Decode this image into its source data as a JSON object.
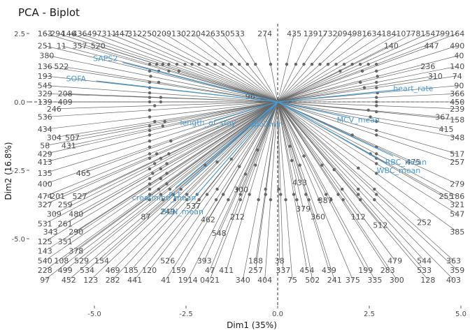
{
  "chart_data": {
    "type": "scatter",
    "title": "PCA - Biplot",
    "xlabel": "Dim1 (35%)",
    "ylabel": "Dim2 (16.8%)",
    "xlim": [
      -6.5,
      5.0
    ],
    "ylim": [
      -7.2,
      3.0
    ],
    "x_ticks": [
      -5.0,
      -2.5,
      0.0,
      2.5,
      5.0
    ],
    "x_tick_labels": [
      "-5.0",
      "-2.5",
      "0.0",
      "2.5",
      "5.0"
    ],
    "y_ticks": [
      2.5,
      0.0,
      -2.5,
      -5.0
    ],
    "y_tick_labels": [
      "2.5",
      "0.0",
      "-2.5",
      "-5.0"
    ],
    "grid": false,
    "reference_lines": {
      "x": 0,
      "y": 0,
      "style": "dashed"
    },
    "colors": {
      "observations": "#666666",
      "variables": "#4a9bd0"
    },
    "observations": [
      {
        "label": "163",
        "x": -6.35,
        "y": 2.5
      },
      {
        "label": "294",
        "x": -6.0,
        "y": 2.5
      },
      {
        "label": "146",
        "x": -5.7,
        "y": 2.5
      },
      {
        "label": "436",
        "x": -5.4,
        "y": 2.5
      },
      {
        "label": "497",
        "x": -5.0,
        "y": 2.5
      },
      {
        "label": "311",
        "x": -4.6,
        "y": 2.5
      },
      {
        "label": "447",
        "x": -4.25,
        "y": 2.5
      },
      {
        "label": "312",
        "x": -3.9,
        "y": 2.5
      },
      {
        "label": "250",
        "x": -3.5,
        "y": 2.5
      },
      {
        "label": "209",
        "x": -3.1,
        "y": 2.5
      },
      {
        "label": "130",
        "x": -2.7,
        "y": 2.5
      },
      {
        "label": "220",
        "x": -2.3,
        "y": 2.5
      },
      {
        "label": "426",
        "x": -1.9,
        "y": 2.5
      },
      {
        "label": "350",
        "x": -1.5,
        "y": 2.5
      },
      {
        "label": "533",
        "x": -1.1,
        "y": 2.5
      },
      {
        "label": "274",
        "x": -0.35,
        "y": 2.5
      },
      {
        "label": "435",
        "x": 0.45,
        "y": 2.5
      },
      {
        "label": "139",
        "x": 0.9,
        "y": 2.5
      },
      {
        "label": "173",
        "x": 1.3,
        "y": 2.5
      },
      {
        "label": "209",
        "x": 1.7,
        "y": 2.5
      },
      {
        "label": "498",
        "x": 2.1,
        "y": 2.5
      },
      {
        "label": "163",
        "x": 2.5,
        "y": 2.5
      },
      {
        "label": "418",
        "x": 2.9,
        "y": 2.5
      },
      {
        "label": "410",
        "x": 3.3,
        "y": 2.5
      },
      {
        "label": "778",
        "x": 3.7,
        "y": 2.5
      },
      {
        "label": "154",
        "x": 4.1,
        "y": 2.5
      },
      {
        "label": "799",
        "x": 4.5,
        "y": 2.5
      },
      {
        "label": "164",
        "x": 4.9,
        "y": 2.5
      },
      {
        "label": "251",
        "x": -6.35,
        "y": 2.05
      },
      {
        "label": "11",
        "x": -5.9,
        "y": 2.05
      },
      {
        "label": "357",
        "x": -5.4,
        "y": 2.05
      },
      {
        "label": "520",
        "x": -4.9,
        "y": 2.05
      },
      {
        "label": "140",
        "x": 3.1,
        "y": 2.05
      },
      {
        "label": "447",
        "x": 4.2,
        "y": 2.05
      },
      {
        "label": "490",
        "x": 4.9,
        "y": 2.05
      },
      {
        "label": "380",
        "x": -6.3,
        "y": 1.7
      },
      {
        "label": "40",
        "x": 4.95,
        "y": 1.7
      },
      {
        "label": "136",
        "x": -6.35,
        "y": 1.3
      },
      {
        "label": "522",
        "x": -5.9,
        "y": 1.3
      },
      {
        "label": "236",
        "x": 4.1,
        "y": 1.3
      },
      {
        "label": "140",
        "x": 4.9,
        "y": 1.3
      },
      {
        "label": "193",
        "x": -6.35,
        "y": 0.95
      },
      {
        "label": "310",
        "x": 4.3,
        "y": 0.95
      },
      {
        "label": "74",
        "x": 4.9,
        "y": 0.95
      },
      {
        "label": "545",
        "x": -6.35,
        "y": 0.6
      },
      {
        "label": "90",
        "x": 4.95,
        "y": 0.6
      },
      {
        "label": "329",
        "x": -6.35,
        "y": 0.3
      },
      {
        "label": "208",
        "x": -5.8,
        "y": 0.3
      },
      {
        "label": "366",
        "x": 4.9,
        "y": 0.3
      },
      {
        "label": "139",
        "x": -6.35,
        "y": 0.0
      },
      {
        "label": "409",
        "x": -5.8,
        "y": 0.0
      },
      {
        "label": "450",
        "x": 4.9,
        "y": 0.0
      },
      {
        "label": "246",
        "x": -6.1,
        "y": -0.25
      },
      {
        "label": "239",
        "x": 4.9,
        "y": -0.25
      },
      {
        "label": "536",
        "x": -6.35,
        "y": -0.55
      },
      {
        "label": "367",
        "x": 4.5,
        "y": -0.55
      },
      {
        "label": "158",
        "x": 4.9,
        "y": -0.65
      },
      {
        "label": "434",
        "x": -6.35,
        "y": -1.0
      },
      {
        "label": "415",
        "x": 4.6,
        "y": -1.0
      },
      {
        "label": "304",
        "x": -6.1,
        "y": -1.3
      },
      {
        "label": "507",
        "x": -5.6,
        "y": -1.3
      },
      {
        "label": "348",
        "x": 4.9,
        "y": -1.3
      },
      {
        "label": "58",
        "x": -6.35,
        "y": -1.6
      },
      {
        "label": "431",
        "x": -5.7,
        "y": -1.6
      },
      {
        "label": "429",
        "x": -6.35,
        "y": -1.9
      },
      {
        "label": "517",
        "x": 4.9,
        "y": -1.9
      },
      {
        "label": "413",
        "x": -6.35,
        "y": -2.2
      },
      {
        "label": "475",
        "x": 3.7,
        "y": -2.2
      },
      {
        "label": "257",
        "x": 4.9,
        "y": -2.2
      },
      {
        "label": "135",
        "x": -6.35,
        "y": -2.6
      },
      {
        "label": "465",
        "x": -5.3,
        "y": -2.6
      },
      {
        "label": "400",
        "x": -6.35,
        "y": -3.0
      },
      {
        "label": "279",
        "x": 4.9,
        "y": -3.0
      },
      {
        "label": "474",
        "x": -6.35,
        "y": -3.45
      },
      {
        "label": "201",
        "x": -6.0,
        "y": -3.45
      },
      {
        "label": "527",
        "x": -5.4,
        "y": -3.45
      },
      {
        "label": "255",
        "x": 4.6,
        "y": -3.45
      },
      {
        "label": "186",
        "x": 4.9,
        "y": -3.45
      },
      {
        "label": "327",
        "x": -6.35,
        "y": -3.75
      },
      {
        "label": "259",
        "x": -5.8,
        "y": -3.75
      },
      {
        "label": "321",
        "x": 4.9,
        "y": -3.75
      },
      {
        "label": "309",
        "x": -6.1,
        "y": -4.1
      },
      {
        "label": "480",
        "x": -5.5,
        "y": -4.1
      },
      {
        "label": "547",
        "x": 4.9,
        "y": -4.1
      },
      {
        "label": "531",
        "x": -6.35,
        "y": -4.45
      },
      {
        "label": "261",
        "x": -5.8,
        "y": -4.45
      },
      {
        "label": "343",
        "x": -6.2,
        "y": -4.75
      },
      {
        "label": "290",
        "x": -5.5,
        "y": -4.75
      },
      {
        "label": "385",
        "x": 4.9,
        "y": -4.75
      },
      {
        "label": "125",
        "x": -6.35,
        "y": -5.1
      },
      {
        "label": "351",
        "x": -5.8,
        "y": -5.1
      },
      {
        "label": "143",
        "x": -6.35,
        "y": -5.45
      },
      {
        "label": "378",
        "x": -5.5,
        "y": -5.45
      },
      {
        "label": "540",
        "x": -6.35,
        "y": -5.8
      },
      {
        "label": "108",
        "x": -5.9,
        "y": -5.8
      },
      {
        "label": "529",
        "x": -5.35,
        "y": -5.8
      },
      {
        "label": "154",
        "x": -4.8,
        "y": -5.8
      },
      {
        "label": "526",
        "x": -3.0,
        "y": -5.8
      },
      {
        "label": "393",
        "x": -2.0,
        "y": -5.8
      },
      {
        "label": "188",
        "x": -0.6,
        "y": -5.8
      },
      {
        "label": "38",
        "x": 0.05,
        "y": -5.8
      },
      {
        "label": "479",
        "x": 3.2,
        "y": -5.8
      },
      {
        "label": "544",
        "x": 4.0,
        "y": -5.8
      },
      {
        "label": "363",
        "x": 4.8,
        "y": -5.8
      },
      {
        "label": "228",
        "x": -6.35,
        "y": -6.15
      },
      {
        "label": "499",
        "x": -5.8,
        "y": -6.15
      },
      {
        "label": "534",
        "x": -5.2,
        "y": -6.15
      },
      {
        "label": "469",
        "x": -4.5,
        "y": -6.15
      },
      {
        "label": "185",
        "x": -4.0,
        "y": -6.15
      },
      {
        "label": "120",
        "x": -3.5,
        "y": -6.15
      },
      {
        "label": "159",
        "x": -2.7,
        "y": -6.15
      },
      {
        "label": "47",
        "x": -1.85,
        "y": -6.15
      },
      {
        "label": "411",
        "x": -1.4,
        "y": -6.15
      },
      {
        "label": "257",
        "x": -0.6,
        "y": -6.15
      },
      {
        "label": "337",
        "x": 0.15,
        "y": -6.15
      },
      {
        "label": "454",
        "x": 0.8,
        "y": -6.15
      },
      {
        "label": "439",
        "x": 1.4,
        "y": -6.15
      },
      {
        "label": "199",
        "x": 2.4,
        "y": -6.15
      },
      {
        "label": "283",
        "x": 3.0,
        "y": -6.15
      },
      {
        "label": "533",
        "x": 4.0,
        "y": -6.15
      },
      {
        "label": "359",
        "x": 4.9,
        "y": -6.15
      },
      {
        "label": "97",
        "x": -6.35,
        "y": -6.5
      },
      {
        "label": "452",
        "x": -5.7,
        "y": -6.5
      },
      {
        "label": "123",
        "x": -5.1,
        "y": -6.5
      },
      {
        "label": "282",
        "x": -4.5,
        "y": -6.5
      },
      {
        "label": "441",
        "x": -3.9,
        "y": -6.5
      },
      {
        "label": "41",
        "x": -3.05,
        "y": -6.5
      },
      {
        "label": "1914",
        "x": -2.45,
        "y": -6.5
      },
      {
        "label": "0421",
        "x": -1.85,
        "y": -6.5
      },
      {
        "label": "340",
        "x": -0.95,
        "y": -6.5
      },
      {
        "label": "404",
        "x": -0.35,
        "y": -6.5
      },
      {
        "label": "75",
        "x": 0.4,
        "y": -6.5
      },
      {
        "label": "502",
        "x": 0.95,
        "y": -6.5
      },
      {
        "label": "241",
        "x": 1.55,
        "y": -6.5
      },
      {
        "label": "375",
        "x": 2.05,
        "y": -6.5
      },
      {
        "label": "335",
        "x": 2.65,
        "y": -6.5
      },
      {
        "label": "300",
        "x": 3.25,
        "y": -6.5
      },
      {
        "label": "128",
        "x": 4.1,
        "y": -6.5
      },
      {
        "label": "403",
        "x": 4.8,
        "y": -6.5
      },
      {
        "label": "96",
        "x": -0.75,
        "y": 0.2
      },
      {
        "label": "433",
        "x": 0.6,
        "y": -2.95
      },
      {
        "label": "360",
        "x": 1.1,
        "y": -4.2
      },
      {
        "label": "379",
        "x": 0.7,
        "y": -3.9
      },
      {
        "label": "300",
        "x": -1.0,
        "y": -3.2
      },
      {
        "label": "212",
        "x": -1.1,
        "y": -4.2
      },
      {
        "label": "548",
        "x": -1.6,
        "y": -4.8
      },
      {
        "label": "87",
        "x": -3.6,
        "y": -4.2
      },
      {
        "label": "249",
        "x": -3.0,
        "y": -4.0
      },
      {
        "label": "537",
        "x": -2.3,
        "y": -3.8
      },
      {
        "label": "462",
        "x": -1.9,
        "y": -4.3
      },
      {
        "label": "112",
        "x": 2.2,
        "y": -4.2
      },
      {
        "label": "252",
        "x": 4.0,
        "y": -4.4
      },
      {
        "label": "512",
        "x": 2.8,
        "y": -4.5
      },
      {
        "label": "387",
        "x": 1.3,
        "y": -3.6
      }
    ],
    "variables": [
      {
        "label": "SAPS2",
        "x": -4.7,
        "y": 1.6
      },
      {
        "label": "SOFA",
        "x": -5.5,
        "y": 0.85
      },
      {
        "label": "heart_rate",
        "x": 3.7,
        "y": 0.5
      },
      {
        "label": "length_of_stay",
        "x": -1.9,
        "y": -0.75
      },
      {
        "label": "spo2min",
        "x": -0.3,
        "y": -0.8
      },
      {
        "label": "MCV_mean",
        "x": 2.2,
        "y": -0.65
      },
      {
        "label": "RBC_mean",
        "x": 3.5,
        "y": -2.2
      },
      {
        "label": "WBC_mean",
        "x": 3.3,
        "y": -2.5
      },
      {
        "label": "creatinine_mean",
        "x": -3.1,
        "y": -3.5
      },
      {
        "label": "BUN_mean",
        "x": -2.6,
        "y": -4.0
      },
      {
        "label": "PLT",
        "x": -2.8,
        "y": -3.4
      }
    ]
  }
}
